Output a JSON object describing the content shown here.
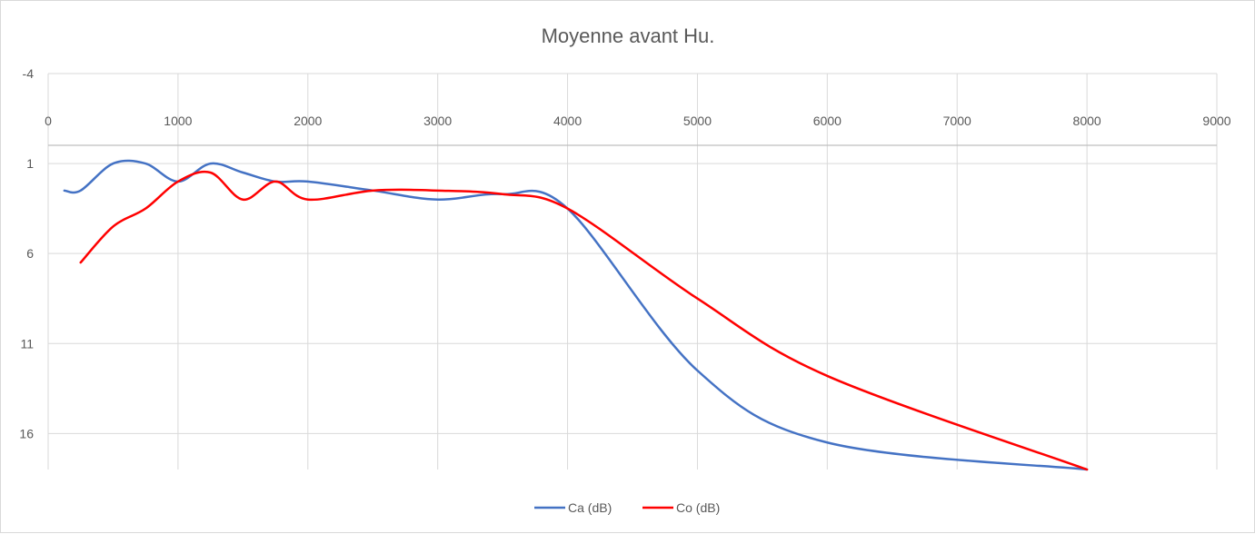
{
  "chart_data": {
    "type": "line",
    "title": "Moyenne avant Hu.",
    "xlabel": "",
    "ylabel": "",
    "xlim": [
      0,
      9000
    ],
    "ylim": [
      -4,
      18
    ],
    "y_reversed": true,
    "x_ticks": [
      0,
      1000,
      2000,
      3000,
      4000,
      5000,
      6000,
      7000,
      8000,
      9000
    ],
    "x_tick_labels": [
      "0",
      "1000",
      "2000",
      "3000",
      "4000",
      "5000",
      "6000",
      "7000",
      "8000",
      "9000"
    ],
    "y_ticks": [
      -4,
      1,
      6,
      11,
      16
    ],
    "y_tick_labels": [
      "-4",
      "1",
      "6",
      "11",
      "16"
    ],
    "grid": true,
    "legend_position": "bottom",
    "series": [
      {
        "name": "Ca (dB)",
        "color": "#4472c4",
        "x": [
          125,
          250,
          500,
          750,
          1000,
          1250,
          1500,
          1750,
          2000,
          2500,
          3000,
          3500,
          4000,
          5000,
          6000,
          8000
        ],
        "y": [
          2.5,
          2.5,
          1,
          1,
          2,
          1,
          1.5,
          2,
          2,
          2.5,
          3,
          2.7,
          3.5,
          12.5,
          16.5,
          18
        ]
      },
      {
        "name": "Co (dB)",
        "color": "#ff0000",
        "x": [
          250,
          500,
          750,
          1000,
          1250,
          1500,
          1750,
          2000,
          2500,
          3000,
          3500,
          4000,
          5000,
          6000,
          8000
        ],
        "y": [
          6.5,
          4.5,
          3.5,
          2,
          1.5,
          3,
          2,
          3,
          2.5,
          2.5,
          2.7,
          3.5,
          8.5,
          12.8,
          18
        ]
      }
    ]
  }
}
